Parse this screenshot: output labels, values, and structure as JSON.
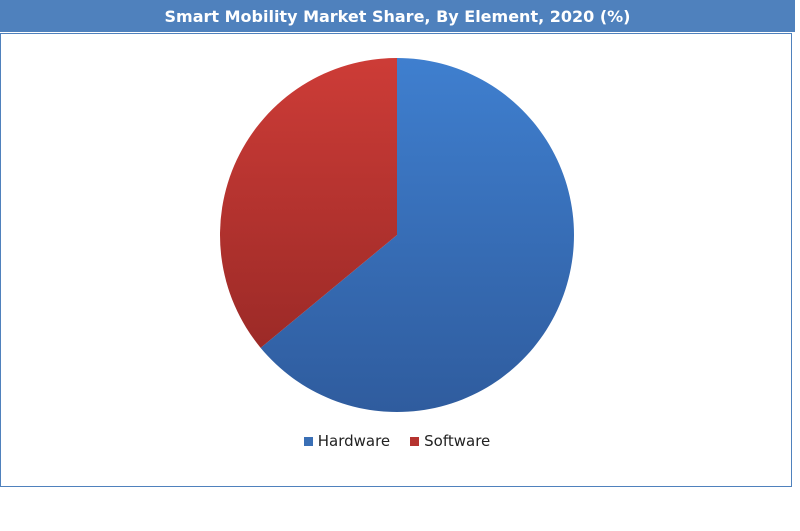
{
  "chart_data": {
    "type": "pie",
    "title": "Smart Mobility Market Share, By Element, 2020 (%)",
    "categories": [
      "Hardware",
      "Software"
    ],
    "values": [
      64,
      36
    ],
    "colors": [
      "#3a6fb5",
      "#b5332f"
    ],
    "legend_position": "bottom"
  }
}
